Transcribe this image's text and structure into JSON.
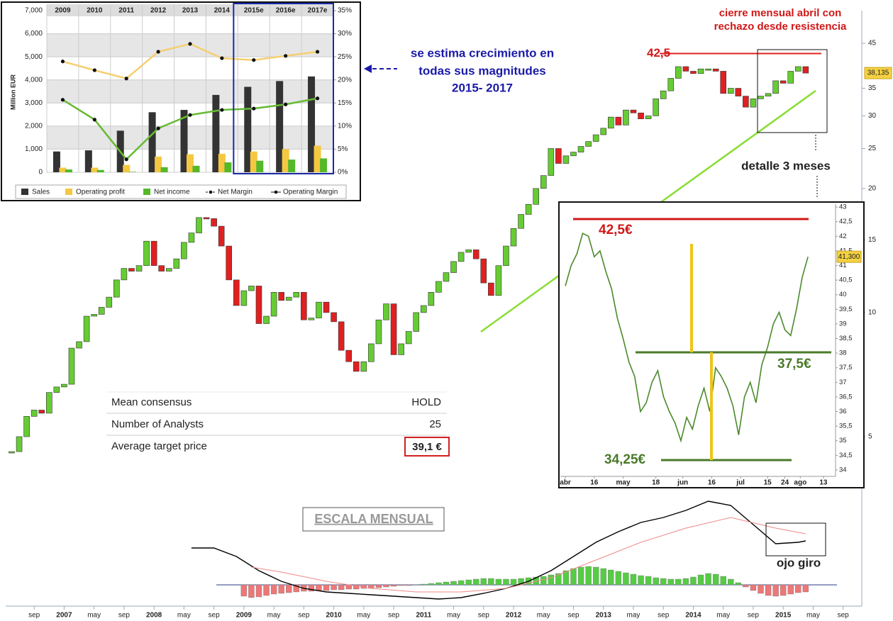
{
  "chart_data": [
    {
      "type": "candlestick",
      "values": [
        4.6,
        5.0,
        5.6,
        5.8,
        5.7,
        6.4,
        6.6,
        6.7,
        8.2,
        8.5,
        9.8,
        9.9,
        10.3,
        10.9,
        12.0,
        12.8,
        12.6,
        13.0,
        14.9,
        13.0,
        12.6,
        12.8,
        13.5,
        14.8,
        15.6,
        17.0,
        16.9,
        16.2,
        14.5,
        12.0,
        10.4,
        11.3,
        11.6,
        9.4,
        9.8,
        11.2,
        10.7,
        10.9,
        11.2,
        9.6,
        9.7,
        10.6,
        10.0,
        9.5,
        8.1,
        7.6,
        7.2,
        7.6,
        8.4,
        9.6,
        10.5,
        7.9,
        8.4,
        9.0,
        10.0,
        10.4,
        11.2,
        11.9,
        12.5,
        13.3,
        14.0,
        14.2,
        13.5,
        11.8,
        11.0,
        13.0,
        14.5,
        16.0,
        17.3,
        18.3,
        20.0,
        21.5,
        25.0,
        23.0,
        24.0,
        24.5,
        25.3,
        26.0,
        27.0,
        28.0,
        29.8,
        28.5,
        31.0,
        30.5,
        29.5,
        30.0,
        33.0,
        34.5,
        37.0,
        39.5,
        38.5,
        38.0,
        39.0,
        39.0,
        38.5,
        34.0,
        35.0,
        33.5,
        31.5,
        33.0,
        33.5,
        34.0,
        36.5,
        36.0,
        38.5,
        39.5,
        38.1
      ],
      "up_color": "#66cc33",
      "down_color": "#e02020",
      "log_scale": true,
      "ylim": [
        4.2,
        54
      ],
      "yticks": [
        5,
        10,
        15,
        20,
        25,
        30,
        35,
        45
      ],
      "xticks": [
        {
          "value": 3,
          "label": "sep"
        },
        {
          "value": 7,
          "label": "2007"
        },
        {
          "value": 11,
          "label": "may"
        },
        {
          "value": 15,
          "label": "sep"
        },
        {
          "value": 19,
          "label": "2008"
        },
        {
          "value": 23,
          "label": "may"
        },
        {
          "value": 27,
          "label": "sep"
        },
        {
          "value": 31,
          "label": "2009"
        },
        {
          "value": 35,
          "label": "may"
        },
        {
          "value": 39,
          "label": "sep"
        },
        {
          "value": 43,
          "label": "2010"
        },
        {
          "value": 47,
          "label": "may"
        },
        {
          "value": 51,
          "label": "sep"
        },
        {
          "value": 55,
          "label": "2011"
        },
        {
          "value": 59,
          "label": "may"
        },
        {
          "value": 63,
          "label": "sep"
        },
        {
          "value": 67,
          "label": "2012"
        },
        {
          "value": 71,
          "label": "may"
        },
        {
          "value": 75,
          "label": "sep"
        },
        {
          "value": 79,
          "label": "2013"
        },
        {
          "value": 83,
          "label": "may"
        },
        {
          "value": 87,
          "label": "sep"
        },
        {
          "value": 91,
          "label": "2014"
        },
        {
          "value": 95,
          "label": "may"
        },
        {
          "value": 99,
          "label": "sep"
        },
        {
          "value": 103,
          "label": "2015"
        },
        {
          "value": 107,
          "label": "may"
        },
        {
          "value": 111,
          "label": "sep"
        }
      ],
      "resistance": {
        "value": 42.5,
        "label": "42,5"
      },
      "last_price_label": "38,135"
    },
    {
      "type": "bar",
      "categories": [
        "2009",
        "2010",
        "2011",
        "2012",
        "2013",
        "2014",
        "2015e",
        "2016e",
        "2017e"
      ],
      "ylabel": "Million EUR",
      "series": [
        {
          "name": "Sales",
          "type": "bar",
          "color": "#333333",
          "values": [
            900,
            950,
            1800,
            2600,
            2700,
            3350,
            3700,
            3950,
            4150
          ]
        },
        {
          "name": "Operating profit",
          "type": "bar",
          "color": "#f5c842",
          "values": [
            200,
            200,
            320,
            680,
            780,
            800,
            900,
            1000,
            1150
          ]
        },
        {
          "name": "Net income",
          "type": "bar",
          "color": "#55b82a",
          "values": [
            120,
            100,
            20,
            220,
            280,
            430,
            500,
            550,
            600
          ]
        },
        {
          "name": "Net Margin",
          "type": "line",
          "axis": "y2",
          "color": "#66bb33",
          "values": [
            15.7,
            11.4,
            2.8,
            9.5,
            12.4,
            13.5,
            13.8,
            14.7,
            16.0
          ]
        },
        {
          "name": "Operating Margin",
          "type": "line",
          "axis": "y2",
          "color": "#f5cf70",
          "values": [
            24.0,
            22.1,
            20.3,
            26.1,
            27.8,
            24.7,
            24.3,
            25.2,
            26.1
          ]
        }
      ],
      "ylim": [
        0,
        7000
      ],
      "yticks": [
        0,
        {
          "value": 1000,
          "label": "1,000"
        },
        {
          "value": 2000,
          "label": "2,000"
        },
        {
          "value": 3000,
          "label": "3,000"
        },
        {
          "value": 4000,
          "label": "4,000"
        },
        {
          "value": 5000,
          "label": "5,000"
        },
        {
          "value": 6000,
          "label": "6,000"
        },
        {
          "value": 7000,
          "label": "7,000"
        }
      ],
      "y2lim": [
        0,
        35
      ],
      "y2ticks": [
        {
          "value": 0,
          "label": "0%"
        },
        {
          "value": 5,
          "label": "5%"
        },
        {
          "value": 10,
          "label": "10%"
        },
        {
          "value": 15,
          "label": "15%"
        },
        {
          "value": 20,
          "label": "20%"
        },
        {
          "value": 25,
          "label": "25%"
        },
        {
          "value": 30,
          "label": "30%"
        },
        {
          "value": 35,
          "label": "35%"
        }
      ]
    },
    {
      "type": "line",
      "x": [
        0,
        3,
        6,
        9,
        12,
        15,
        18,
        21,
        24,
        27,
        30,
        33,
        36,
        39,
        42,
        45,
        48,
        51,
        54,
        57,
        60,
        63,
        66,
        69,
        72,
        75,
        78,
        81,
        84,
        87,
        90,
        93,
        96,
        99,
        102,
        105,
        108,
        111,
        114,
        117,
        120,
        123,
        126
      ],
      "values": [
        40.3,
        41.0,
        41.4,
        42.1,
        42.0,
        41.3,
        41.5,
        40.8,
        40.2,
        39.2,
        38.5,
        37.7,
        37.2,
        36.0,
        36.3,
        37.0,
        37.4,
        36.5,
        36.0,
        35.6,
        35.0,
        35.8,
        35.4,
        36.2,
        36.8,
        36.0,
        37.5,
        37.2,
        36.8,
        36.2,
        35.2,
        36.5,
        37.0,
        36.3,
        37.6,
        38.2,
        39.0,
        39.4,
        38.8,
        38.6,
        39.5,
        40.6,
        41.3
      ],
      "color": "#4a8a2a",
      "xlim": [
        -2.6,
        140.3
      ],
      "ylim": [
        33.78,
        43.1
      ],
      "xticks": [
        {
          "value": 0,
          "label": "abr"
        },
        {
          "value": 15,
          "label": "16"
        },
        {
          "value": 30,
          "label": "may"
        },
        {
          "value": 47,
          "label": "18"
        },
        {
          "value": 61,
          "label": "jun"
        },
        {
          "value": 76,
          "label": "16"
        },
        {
          "value": 91,
          "label": "jul"
        },
        {
          "value": 105,
          "label": "15"
        },
        {
          "value": 114,
          "label": "24"
        },
        {
          "value": 122,
          "label": "ago"
        },
        {
          "value": 134,
          "label": "13"
        }
      ],
      "yticks": [
        34,
        {
          "value": 34.5,
          "label": "34,5"
        },
        35,
        {
          "value": 35.5,
          "label": "35,5"
        },
        36,
        {
          "value": 36.5,
          "label": "36,5"
        },
        37,
        {
          "value": 37.5,
          "label": "37,5"
        },
        38,
        {
          "value": 38.5,
          "label": "38,5"
        },
        39,
        {
          "value": 39.5,
          "label": "39,5"
        },
        40,
        {
          "value": 40.5,
          "label": "40,5"
        },
        41,
        {
          "value": 41.5,
          "label": "41,5"
        },
        42,
        {
          "value": 42.5,
          "label": "42,5"
        },
        43
      ],
      "last_price_label": "41,300"
    },
    {
      "type": "macd",
      "histogram": [
        null,
        null,
        null,
        null,
        null,
        null,
        null,
        null,
        null,
        null,
        null,
        null,
        null,
        null,
        null,
        null,
        null,
        null,
        null,
        null,
        null,
        null,
        null,
        null,
        null,
        null,
        null,
        null,
        null,
        null,
        null,
        -16,
        -18,
        -17,
        -15,
        -13,
        -12,
        -11,
        -10,
        -9,
        -9,
        -8,
        -8,
        -7,
        -7,
        -6,
        -6,
        -5,
        -5,
        -4,
        -3,
        -2,
        -1,
        -1,
        0,
        1,
        2,
        3,
        4,
        5,
        6,
        7,
        8,
        9,
        9,
        8,
        8,
        8,
        9,
        10,
        11,
        12,
        14,
        16,
        20,
        23,
        25,
        26,
        25,
        23,
        21,
        19,
        17,
        15,
        13,
        12,
        10,
        9,
        8,
        8,
        9,
        11,
        14,
        16,
        15,
        12,
        8,
        3,
        -3,
        -8,
        -12,
        -15,
        -16,
        -15,
        -13,
        -11,
        -10
      ],
      "macd_x": [
        24,
        27,
        30,
        33,
        36,
        39,
        42,
        45,
        48,
        51,
        54,
        57,
        60,
        63,
        66,
        69,
        72,
        75,
        78,
        81,
        84,
        87,
        90,
        93,
        96,
        99,
        102,
        105,
        106
      ],
      "macd": [
        52,
        52,
        40,
        20,
        5,
        -5,
        -10,
        -12,
        -14,
        -16,
        -18,
        -20,
        -18,
        -12,
        -5,
        5,
        20,
        40,
        60,
        75,
        88,
        95,
        105,
        118,
        112,
        85,
        58,
        60,
        62
      ],
      "signal_x": [
        32,
        36,
        42,
        48,
        54,
        60,
        66,
        72,
        78,
        84,
        90,
        96,
        102,
        106
      ],
      "signal": [
        25,
        18,
        5,
        -5,
        -10,
        -10,
        -5,
        10,
        35,
        60,
        80,
        95,
        80,
        72
      ],
      "up_color": "#55cc44",
      "down_color": "#ee7777",
      "macd_color": "#000000",
      "signal_color": "#ee8888"
    }
  ],
  "annotations": {
    "forecast": [
      "se estima crecimiento en",
      "todas sus magnitudes",
      "2015- 2017"
    ],
    "close_note": [
      "cierre mensual abril con",
      "rechazo desde resistencia"
    ],
    "detail": "detalle 3 meses",
    "detail_levels": [
      "42,5€",
      "37,5€",
      "34,25€"
    ],
    "scale": "ESCALA MENSUAL",
    "turn": "ojo giro"
  },
  "consensus": {
    "rows": [
      [
        "Mean consensus",
        "HOLD"
      ],
      [
        "Number of Analysts",
        "25"
      ],
      [
        "Average target price",
        "39,1 €"
      ]
    ]
  }
}
